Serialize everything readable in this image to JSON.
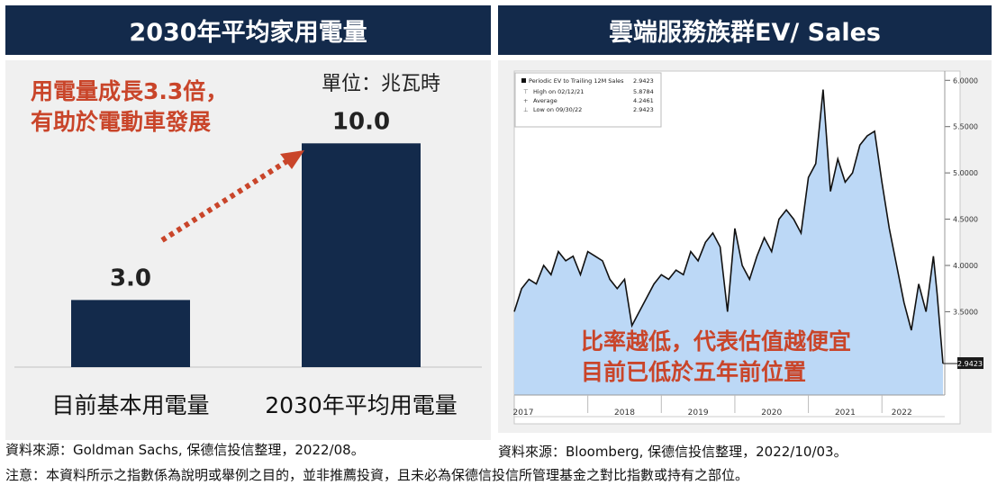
{
  "left": {
    "header": "2030年平均家用電量",
    "unit": "單位：兆瓦時",
    "annotation": [
      "用電量成長3.3倍，",
      "有助於電動車發展"
    ]
  },
  "right": {
    "header": "雲端服務族群EV/ Sales",
    "annotation": [
      "比率越低，代表估值越便宜",
      "目前已低於五年前位置"
    ]
  },
  "footer": {
    "left_source": "資料來源：Goldman Sachs, 保德信投信整理，2022/08。",
    "right_source": "資料來源：Bloomberg, 保德信投信整理，2022/10/03。",
    "note": "注意：本資料所示之指數係為說明或舉例之目的，並非推薦投資，且未必為保德信投信所管理基金之對比指數或持有之部位。"
  },
  "chart_data": [
    {
      "type": "bar",
      "categories": [
        "目前基本用電量",
        "2030年平均用電量"
      ],
      "values": [
        3.0,
        10.0
      ],
      "value_labels": [
        "3.0",
        "10.0"
      ],
      "title": "2030年平均家用電量",
      "ylabel": "單位：兆瓦時",
      "ylim": [
        0,
        11.5
      ],
      "bar_color": "#132a4b"
    },
    {
      "type": "area",
      "title": "雲端服務族群EV/ Sales",
      "legend": {
        "series_name": "Periodic EV to Trailing 12M Sales",
        "current": "2.9423",
        "rows": [
          {
            "label": "High on 02/12/21",
            "value": "5.8784"
          },
          {
            "label": "Average",
            "value": "4.2461"
          },
          {
            "label": "Low on 09/30/22",
            "value": "2.9423"
          }
        ]
      },
      "last_value_label": "2.9423",
      "x_tick_labels": [
        "2017",
        "2018",
        "2019",
        "2020",
        "2021",
        "2022"
      ],
      "x_tick_values": [
        2017.0,
        2018.0,
        2019.0,
        2020.0,
        2021.0,
        2022.0
      ],
      "xlim": [
        2017.0,
        2022.83
      ],
      "y_tick_labels": [
        "3.5000",
        "4.0000",
        "4.5000",
        "5.0000",
        "5.5000",
        "6.0000"
      ],
      "y_tick_values": [
        3.5,
        4.0,
        4.5,
        5.0,
        5.5,
        6.0
      ],
      "ylim": [
        2.6,
        6.1
      ],
      "line_color": "#111111",
      "fill_color": "#bcd8f6",
      "x": [
        2017.0,
        2017.1,
        2017.2,
        2017.3,
        2017.4,
        2017.5,
        2017.6,
        2017.7,
        2017.8,
        2017.9,
        2018.0,
        2018.1,
        2018.2,
        2018.3,
        2018.4,
        2018.5,
        2018.6,
        2018.7,
        2018.8,
        2018.9,
        2019.0,
        2019.1,
        2019.2,
        2019.3,
        2019.4,
        2019.5,
        2019.6,
        2019.7,
        2019.8,
        2019.9,
        2020.0,
        2020.1,
        2020.2,
        2020.3,
        2020.4,
        2020.5,
        2020.6,
        2020.7,
        2020.8,
        2020.9,
        2021.0,
        2021.1,
        2021.2,
        2021.3,
        2021.4,
        2021.5,
        2021.6,
        2021.7,
        2021.8,
        2021.9,
        2022.0,
        2022.1,
        2022.2,
        2022.3,
        2022.4,
        2022.5,
        2022.6,
        2022.7,
        2022.75,
        2022.83
      ],
      "y": [
        3.5,
        3.75,
        3.85,
        3.8,
        4.0,
        3.9,
        4.15,
        4.05,
        4.1,
        3.9,
        4.15,
        4.1,
        4.05,
        3.85,
        3.75,
        3.85,
        3.35,
        3.5,
        3.65,
        3.8,
        3.9,
        3.85,
        3.95,
        3.9,
        4.15,
        4.05,
        4.25,
        4.35,
        4.2,
        3.5,
        4.4,
        4.0,
        3.85,
        4.1,
        4.3,
        4.15,
        4.5,
        4.6,
        4.5,
        4.35,
        4.95,
        5.1,
        5.9,
        4.8,
        5.15,
        4.9,
        5.0,
        5.3,
        5.4,
        5.45,
        4.9,
        4.4,
        4.0,
        3.6,
        3.3,
        3.8,
        3.5,
        4.1,
        3.7,
        2.94
      ]
    }
  ]
}
